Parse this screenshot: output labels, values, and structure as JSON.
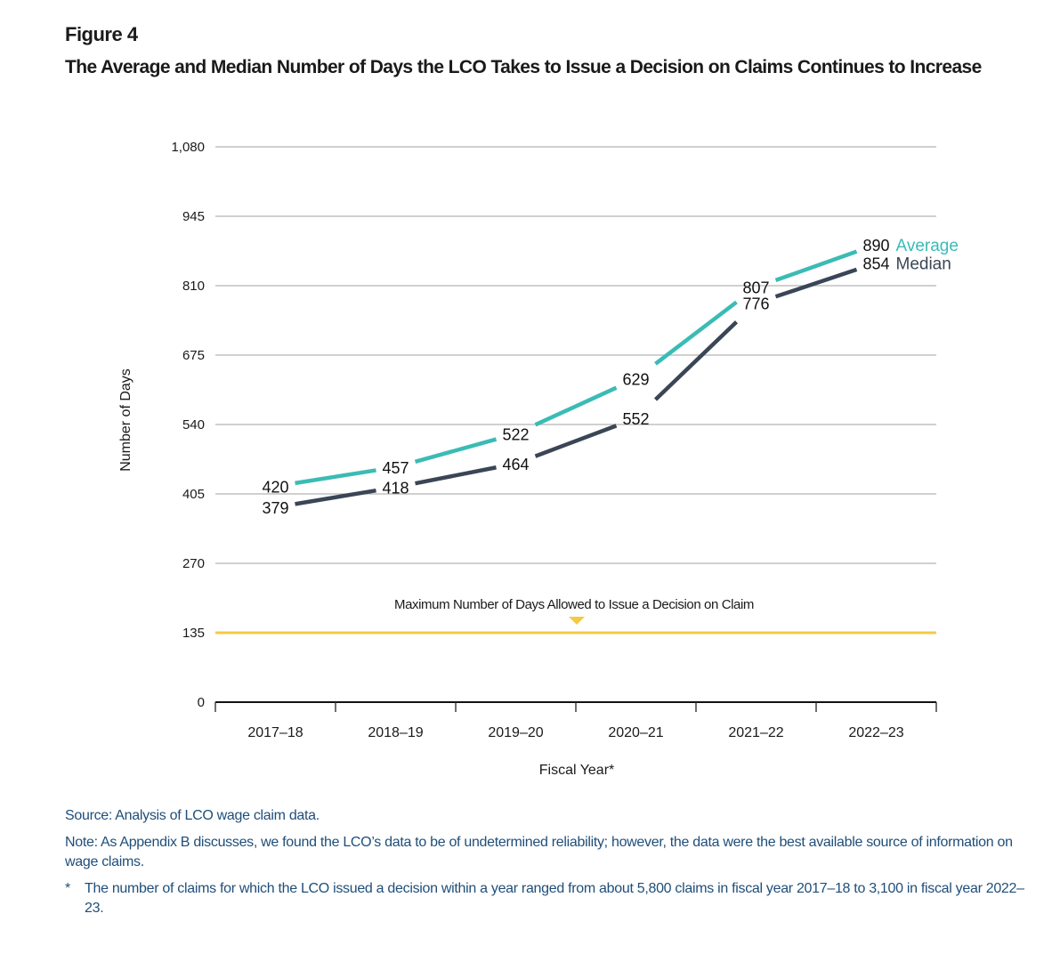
{
  "figure": {
    "label": "Figure 4",
    "title": "The Average and Median Number of Days the LCO Takes to Issue a Decision on Claims Continues to Increase"
  },
  "colors": {
    "average": "#3bbbb5",
    "median": "#3a4656",
    "threshold": "#f5c944",
    "grid": "#b5b5b5",
    "notes_text": "#1f4e79"
  },
  "chart_data": {
    "type": "line",
    "title": "The Average and Median Number of Days the LCO Takes to Issue a Decision on Claims Continues to Increase",
    "xlabel": "Fiscal Year*",
    "ylabel": "Number of Days",
    "categories": [
      "2017–18",
      "2018–19",
      "2019–20",
      "2020–21",
      "2021–22",
      "2022–23"
    ],
    "series": [
      {
        "name": "Average",
        "values": [
          420,
          457,
          522,
          629,
          807,
          890
        ]
      },
      {
        "name": "Median",
        "values": [
          379,
          418,
          464,
          552,
          776,
          854
        ]
      }
    ],
    "ylim": [
      0,
      1080
    ],
    "yticks": [
      0,
      135,
      270,
      405,
      540,
      675,
      810,
      945,
      1080
    ],
    "ytick_labels": [
      "0",
      "135",
      "270",
      "405",
      "540",
      "675",
      "810",
      "945",
      "1,080"
    ],
    "grid": true,
    "legend": "inline-right-end",
    "reference_line": {
      "value": 135,
      "label": "Maximum Number of Days Allowed to Issue a Decision on Claim"
    }
  },
  "notes": {
    "source": "Source:  Analysis of LCO wage claim data.",
    "note": "Note:  As Appendix B discusses, we found the LCO’s data to be of undetermined reliability; however, the data were the best available source of information on wage claims.",
    "footnote_mark": "*",
    "footnote": "The number of claims for which the LCO issued a decision within a year ranged from about 5,800 claims in fiscal year 2017–18 to 3,100 in fiscal year 2022–23."
  }
}
